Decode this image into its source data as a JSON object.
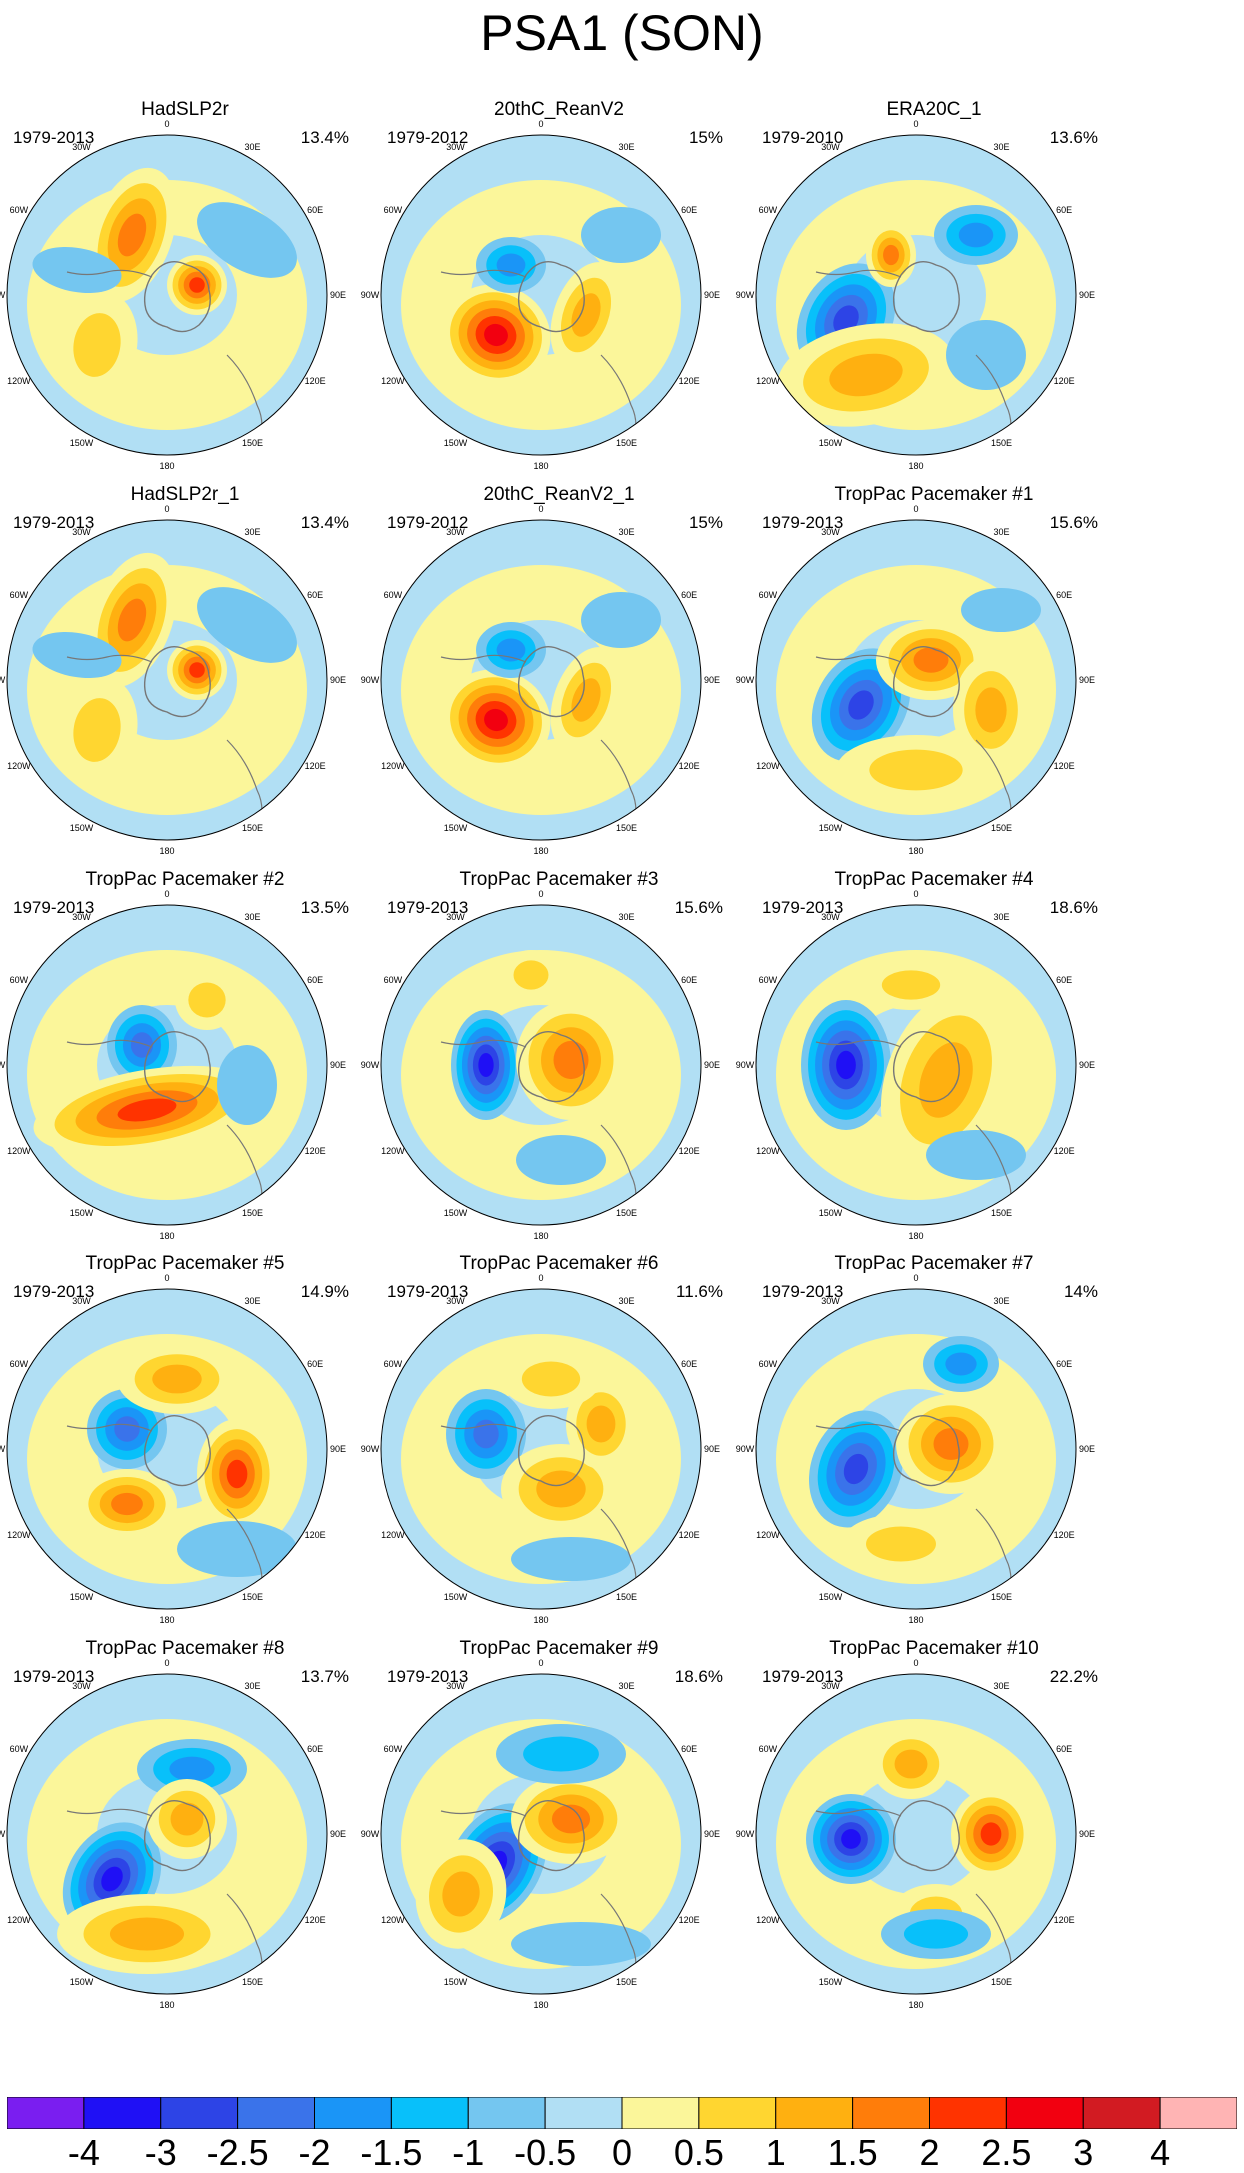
{
  "title": "PSA1 (SON)",
  "chart_data": {
    "type": "contour-map-panels",
    "projection": "south polar stereographic",
    "colorbar": {
      "levels": [
        -4,
        -3,
        -2.5,
        -2,
        -1.5,
        -1,
        -0.5,
        0,
        0.5,
        1,
        1.5,
        2,
        2.5,
        3,
        4
      ],
      "colors": [
        "#7a1ef0",
        "#1f10f5",
        "#2d44e6",
        "#3a73ea",
        "#1a95f7",
        "#08c0fa",
        "#74c6f0",
        "#b1dff4",
        "#fbf69a",
        "#ffd630",
        "#ffb010",
        "#ff7d0a",
        "#ff3300",
        "#f20010",
        "#d21b22",
        "#ffb4b4"
      ]
    },
    "longitude_labels": [
      "0",
      "30E",
      "60E",
      "90E",
      "120E",
      "150E",
      "180",
      "150W",
      "120W",
      "90W",
      "60W",
      "30W"
    ],
    "panels": [
      {
        "name": "HadSLP2r",
        "period": "1979-2013",
        "variance": "13.4%"
      },
      {
        "name": "20thC_ReanV2",
        "period": "1979-2012",
        "variance": "15%"
      },
      {
        "name": "ERA20C_1",
        "period": "1979-2010",
        "variance": "13.6%"
      },
      {
        "name": "HadSLP2r_1",
        "period": "1979-2013",
        "variance": "13.4%"
      },
      {
        "name": "20thC_ReanV2_1",
        "period": "1979-2012",
        "variance": "15%"
      },
      {
        "name": "TropPac Pacemaker #1",
        "period": "1979-2013",
        "variance": "15.6%"
      },
      {
        "name": "TropPac Pacemaker #2",
        "period": "1979-2013",
        "variance": "13.5%"
      },
      {
        "name": "TropPac Pacemaker #3",
        "period": "1979-2013",
        "variance": "15.6%"
      },
      {
        "name": "TropPac Pacemaker #4",
        "period": "1979-2013",
        "variance": "18.6%"
      },
      {
        "name": "TropPac Pacemaker #5",
        "period": "1979-2013",
        "variance": "14.9%"
      },
      {
        "name": "TropPac Pacemaker #6",
        "period": "1979-2013",
        "variance": "11.6%"
      },
      {
        "name": "TropPac Pacemaker #7",
        "period": "1979-2013",
        "variance": "14%"
      },
      {
        "name": "TropPac Pacemaker #8",
        "period": "1979-2013",
        "variance": "13.7%"
      },
      {
        "name": "TropPac Pacemaker #9",
        "period": "1979-2013",
        "variance": "18.6%"
      },
      {
        "name": "TropPac Pacemaker #10",
        "period": "1979-2013",
        "variance": "22.2%"
      }
    ]
  }
}
